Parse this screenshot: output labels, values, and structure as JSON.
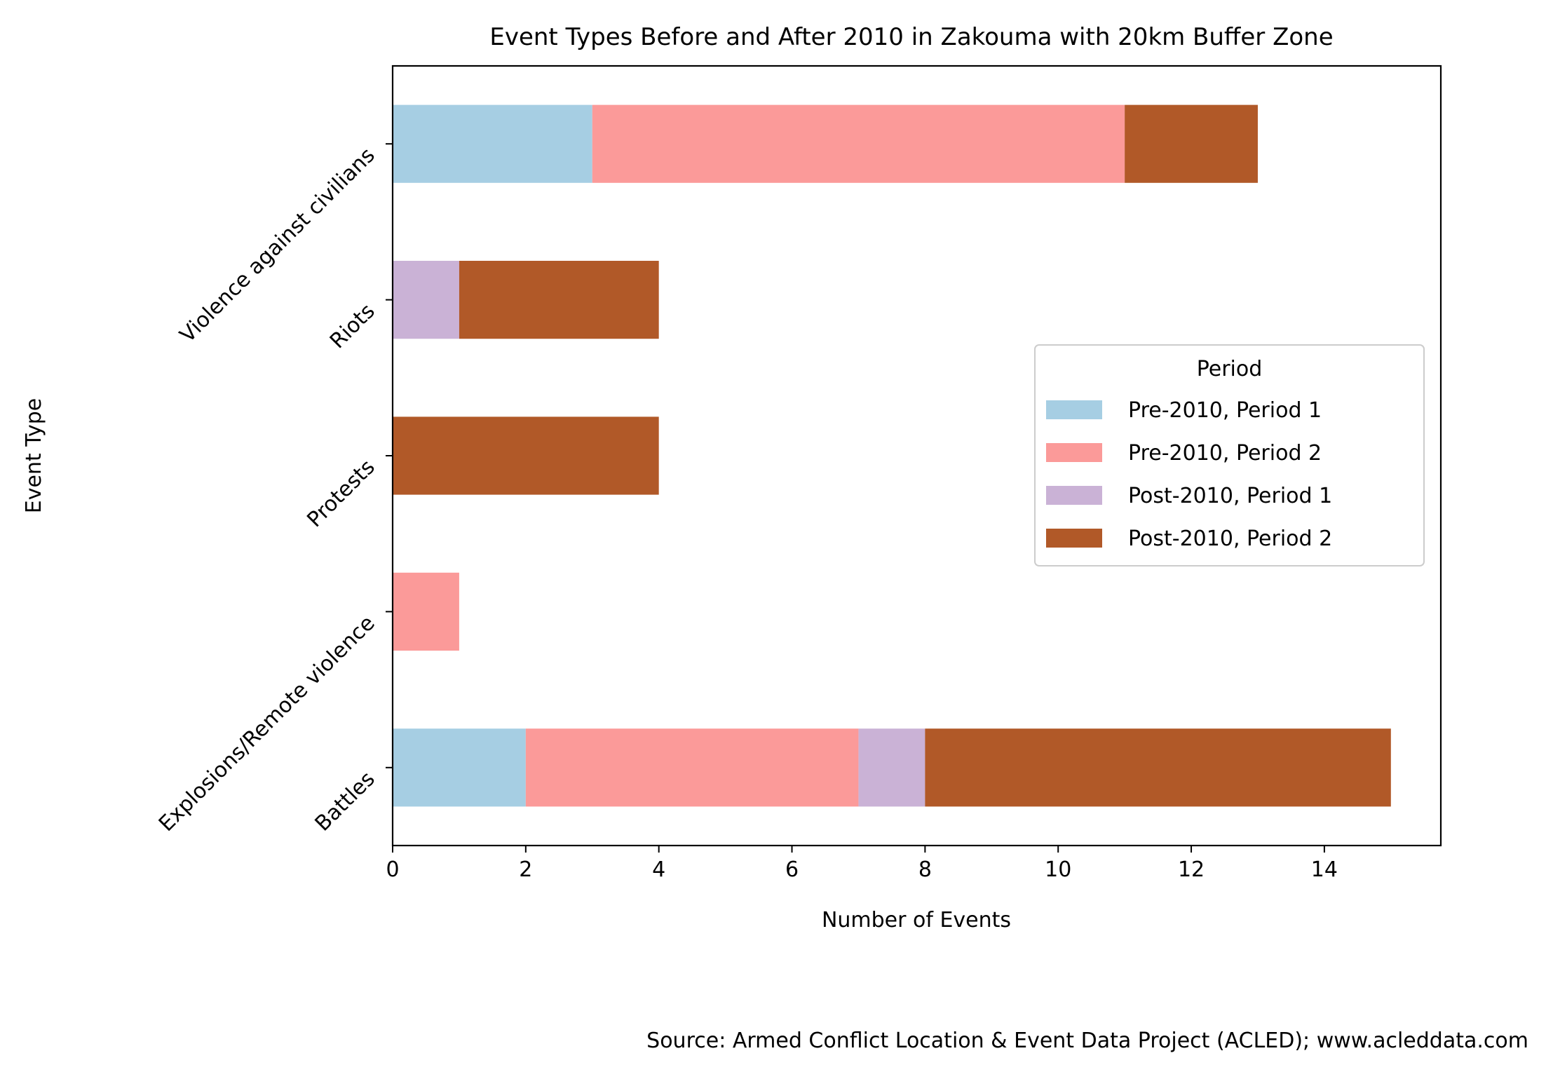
{
  "chart_data": {
    "type": "bar",
    "orientation": "horizontal",
    "stacked": true,
    "title": "Event Types Before and After 2010 in Zakouma with 20km Buffer Zone",
    "xlabel": "Number of Events",
    "ylabel": "Event Type",
    "xlim": [
      0,
      15.75
    ],
    "xticks": [
      0,
      2,
      4,
      6,
      8,
      10,
      12,
      14
    ],
    "grid": false,
    "legend": {
      "title": "Period",
      "placement": "center-right"
    },
    "categories": [
      "Battles",
      "Explosions/Remote violence",
      "Protests",
      "Riots",
      "Violence against civilians"
    ],
    "series": [
      {
        "name": "Pre-2010, Period 1",
        "color": "#a6cee3",
        "values": [
          2,
          0,
          0,
          0,
          3
        ]
      },
      {
        "name": "Pre-2010, Period 2",
        "color": "#fb9a99",
        "values": [
          5,
          1,
          0,
          0,
          8
        ]
      },
      {
        "name": "Post-2010, Period 1",
        "color": "#cab2d6",
        "values": [
          1,
          0,
          0,
          1,
          0
        ]
      },
      {
        "name": "Post-2010, Period 2",
        "color": "#b15928",
        "values": [
          7,
          0,
          4,
          3,
          2
        ]
      }
    ],
    "source": "Source: Armed Conflict Location & Event Data Project (ACLED); www.acleddata.com"
  }
}
